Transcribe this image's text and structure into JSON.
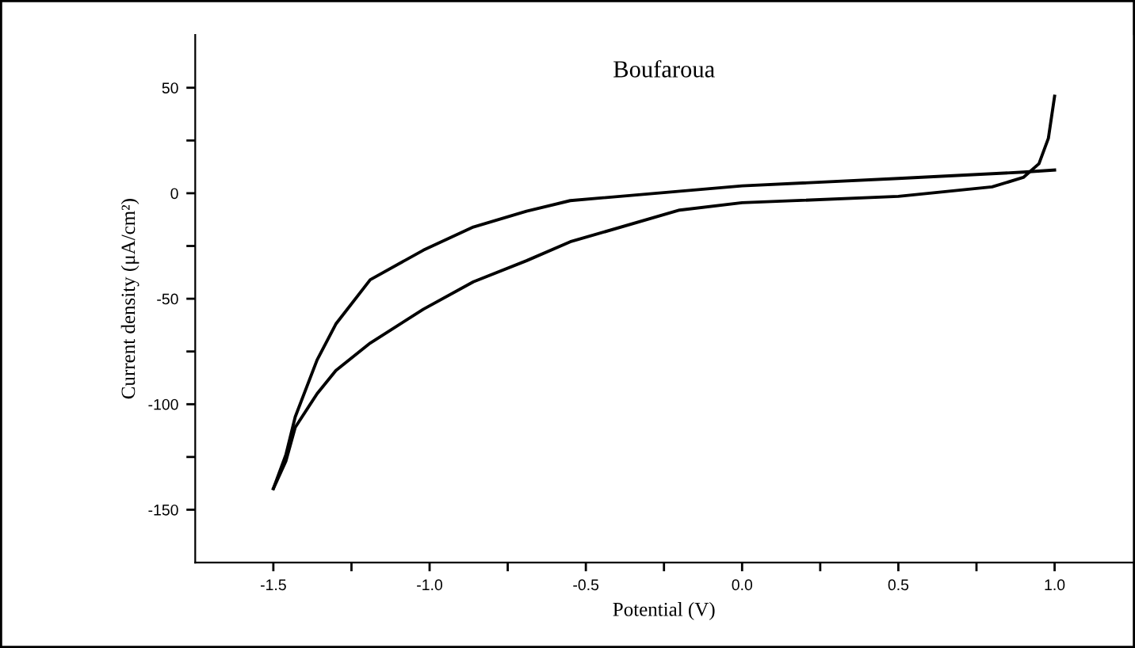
{
  "chart_data": {
    "type": "line",
    "title": "Boufaroua",
    "xlabel": "Potential (V)",
    "ylabel": "Current density (μA/cm²)",
    "series": [
      {
        "color": "#000000",
        "x": [
          -1.5,
          -1.46,
          -1.43,
          -1.36,
          -1.3,
          -1.19,
          -1.02,
          -0.86,
          -0.69,
          -0.55,
          -0.2,
          0.0,
          0.5,
          0.8,
          0.9,
          0.95,
          0.98,
          1.0
        ],
        "values": [
          -140,
          -127,
          -111,
          -95,
          -84,
          -71,
          -55,
          -42,
          -32,
          -23,
          -8,
          -4.5,
          -1.5,
          3,
          7.5,
          14,
          26,
          46
        ]
      },
      {
        "color": "#000000",
        "x": [
          -1.5,
          -1.46,
          -1.43,
          -1.36,
          -1.3,
          -1.19,
          -1.02,
          -0.86,
          -0.69,
          -0.55,
          0.0,
          0.5,
          0.9,
          1.0
        ],
        "values": [
          -140,
          -124,
          -106,
          -79,
          -62,
          -41,
          -27,
          -16,
          -8.5,
          -3.5,
          3.5,
          7,
          10,
          11
        ]
      }
    ],
    "xlim": [
      -1.75,
      1.25
    ],
    "xticks": [
      {
        "value": -1.5,
        "label": "-1.5"
      },
      {
        "value": -1.25,
        "label": null
      },
      {
        "value": -1.0,
        "label": "-1.0"
      },
      {
        "value": -0.75,
        "label": null
      },
      {
        "value": -0.5,
        "label": "-0.5"
      },
      {
        "value": -0.25,
        "label": null
      },
      {
        "value": 0.0,
        "label": "0.0"
      },
      {
        "value": 0.25,
        "label": null
      },
      {
        "value": 0.5,
        "label": "0.5"
      },
      {
        "value": 0.75,
        "label": null
      },
      {
        "value": 1.0,
        "label": "1.0"
      }
    ],
    "ylim": [
      -175,
      75
    ],
    "yticks": [
      -150,
      {
        "value": -125,
        "label": null
      },
      -100,
      {
        "value": -75,
        "label": null
      },
      -50,
      {
        "value": -25,
        "label": null
      },
      0,
      {
        "value": 25,
        "label": null
      },
      50
    ],
    "grid": false,
    "legend": false,
    "marker": "none",
    "line_style": "solid"
  }
}
